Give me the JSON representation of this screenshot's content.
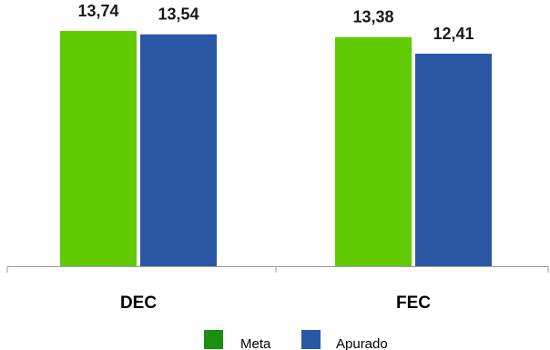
{
  "chart_data": {
    "type": "bar",
    "categories": [
      "DEC",
      "FEC"
    ],
    "series": [
      {
        "name": "Meta",
        "values": [
          13.74,
          13.38
        ],
        "labels": [
          "13,74",
          "13,38"
        ],
        "color": "#5fcb00",
        "legend_color": "#1a8f12"
      },
      {
        "name": "Apurado",
        "values": [
          13.54,
          12.41
        ],
        "labels": [
          "13,54",
          "12,41"
        ],
        "color": "#2a57a4",
        "legend_color": "#2a57a4"
      }
    ],
    "ylim": [
      0,
      14.8
    ],
    "grid": false,
    "legend": "bottom",
    "title": "",
    "xlabel": "",
    "ylabel": ""
  }
}
